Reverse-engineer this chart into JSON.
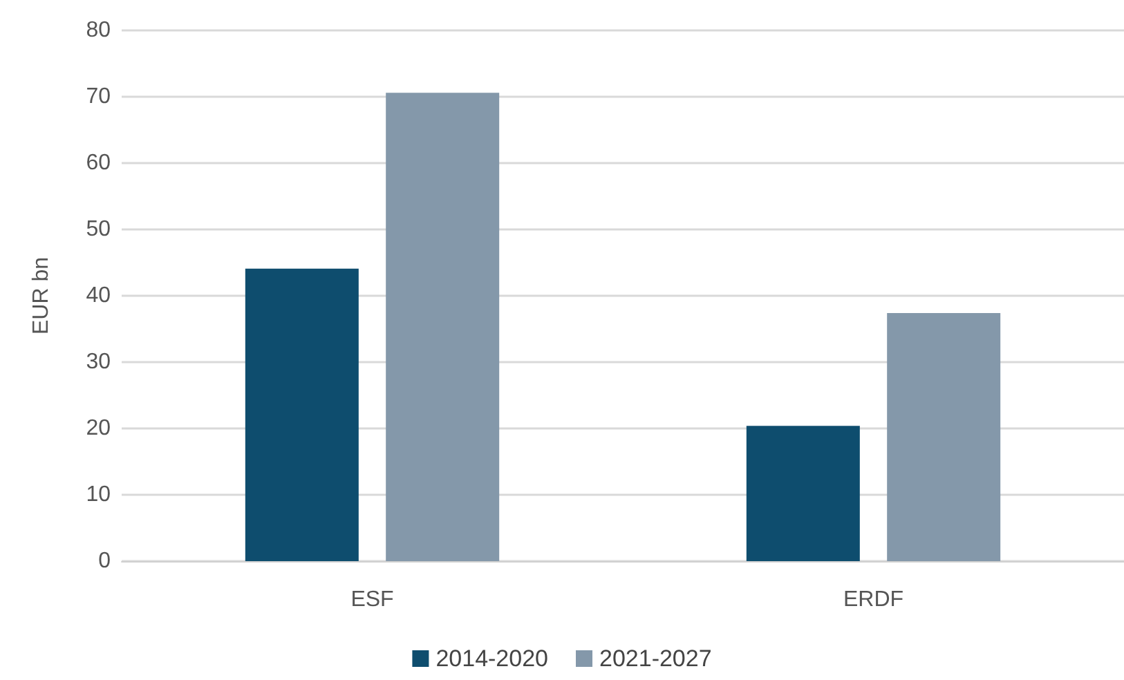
{
  "chart_data": {
    "type": "bar",
    "ylabel": "EUR bn",
    "categories": [
      "ESF",
      "ERDF"
    ],
    "series": [
      {
        "name": "2014-2020",
        "color": "#0e4d6e",
        "values": [
          44.1,
          20.4
        ]
      },
      {
        "name": "2021-2027",
        "color": "#8498aa",
        "values": [
          70.6,
          37.4
        ]
      }
    ],
    "ylim": [
      0,
      80
    ],
    "yticks": [
      0,
      10,
      20,
      30,
      40,
      50,
      60,
      70,
      80
    ],
    "grid": "y",
    "legend": "bottom"
  }
}
